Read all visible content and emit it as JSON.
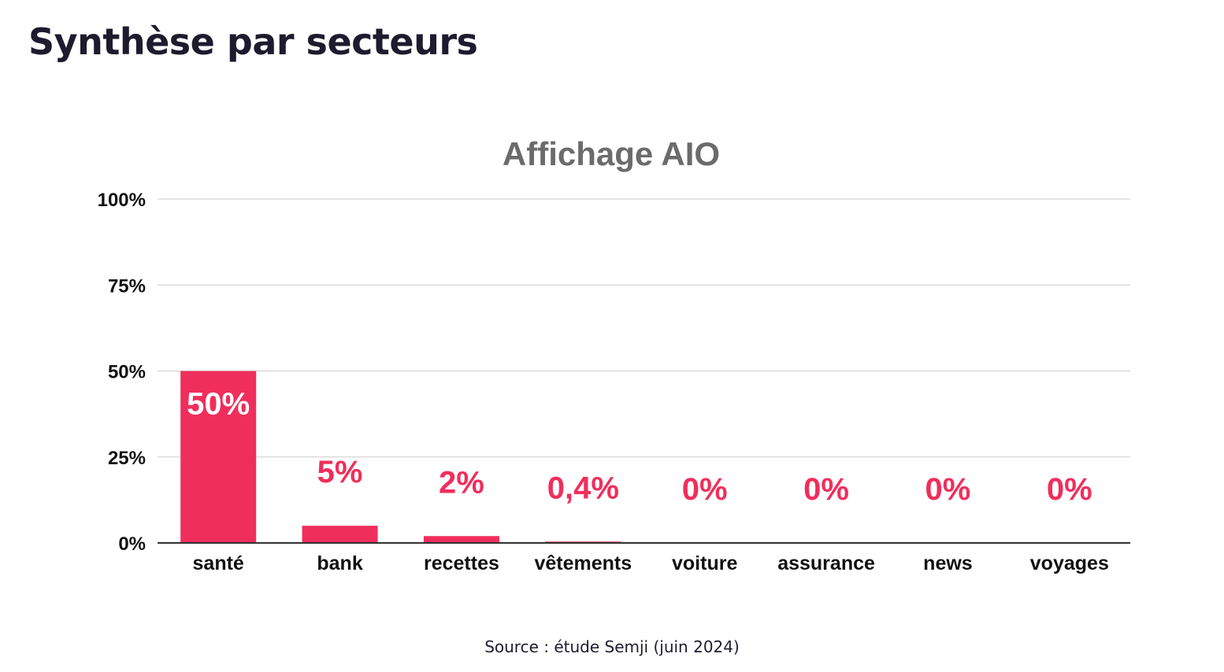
{
  "page": {
    "title": "Synthèse par secteurs",
    "source": "Source : étude Semji (juin 2024)"
  },
  "colors": {
    "bar": "#f02e5c",
    "label_outside": "#f02e5c",
    "label_inside": "#ffffff",
    "title": "#6b6b6b",
    "grid": "#cccccc",
    "axis": "#333333",
    "text": "#111111"
  },
  "chart_data": {
    "type": "bar",
    "title": "Affichage AIO",
    "xlabel": "",
    "ylabel": "",
    "ylim": [
      0,
      100
    ],
    "yticks": [
      0,
      25,
      50,
      75,
      100
    ],
    "ytick_labels": [
      "0%",
      "25%",
      "50%",
      "75%",
      "100%"
    ],
    "grid": true,
    "legend": "none",
    "categories": [
      "santé",
      "bank",
      "recettes",
      "vêtements",
      "voiture",
      "assurance",
      "news",
      "voyages"
    ],
    "values": [
      50,
      5,
      2,
      0.4,
      0,
      0,
      0,
      0
    ],
    "data_labels": [
      "50%",
      "5%",
      "2%",
      "0,4%",
      "0%",
      "0%",
      "0%",
      "0%"
    ]
  }
}
